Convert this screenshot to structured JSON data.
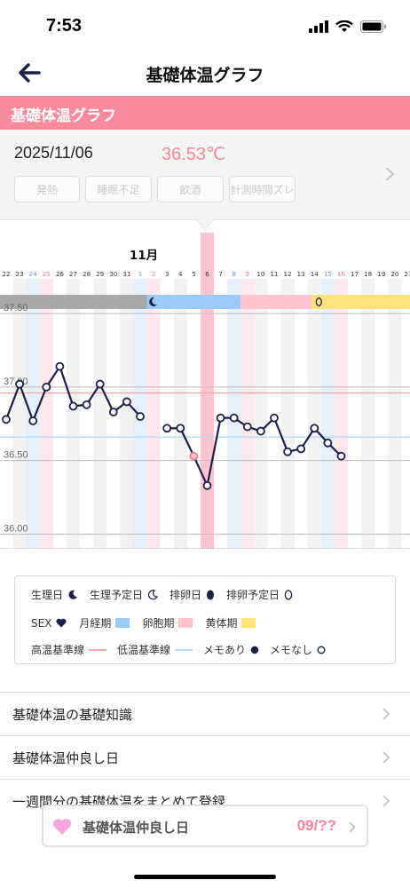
{
  "status_bar": {
    "time": "7:53",
    "icons": [
      "signal-icon",
      "wifi-icon",
      "battery-icon"
    ]
  },
  "nav": {
    "title": "基礎体温グラフ",
    "back_icon": "back-arrow-icon"
  },
  "section": {
    "title": "基礎体温グラフ"
  },
  "info": {
    "date": "2025/11/06",
    "temperature": "36.53℃",
    "tags": [
      "発熱",
      "睡眠不足",
      "飲酒",
      "計測時間ズレ"
    ]
  },
  "colors": {
    "pink": "#f98a9b",
    "navy": "#1b1f4a",
    "blue_band": "#9ccaf7",
    "pink_band": "#fdc3cf",
    "yellow_band": "#fde37d",
    "gray_band": "#a8a8a8",
    "high_line": "#f0a6a6",
    "low_line": "#b6dcf2"
  },
  "chart_data": {
    "type": "line",
    "month_label": "11月",
    "x": [
      "22",
      "23",
      "24",
      "25",
      "26",
      "27",
      "28",
      "29",
      "30",
      "31",
      "1",
      "2",
      "3",
      "4",
      "5",
      "6",
      "7",
      "8",
      "9",
      "10",
      "11",
      "12",
      "13",
      "14",
      "15",
      "16",
      "17",
      "18",
      "19",
      "20",
      "21"
    ],
    "y_ticks": [
      "37.50",
      "37.00",
      "36.50",
      "36.00"
    ],
    "ylim": [
      35.9,
      37.7
    ],
    "series": [
      {
        "name": "",
        "values": [
          36.78,
          37.02,
          36.77,
          37.0,
          37.14,
          36.87,
          36.88,
          37.02,
          36.83,
          36.9,
          36.8,
          null,
          36.72,
          36.72,
          36.53,
          36.33,
          36.79,
          36.79,
          36.73,
          36.7,
          36.79,
          36.56,
          36.58,
          36.72,
          36.62,
          36.53,
          null,
          null,
          null,
          null,
          null
        ]
      }
    ],
    "memo_points": [
      1
    ],
    "highlight_points": [
      14
    ],
    "high_baseline": 36.96,
    "low_baseline": 36.66,
    "phases": [
      {
        "type": "gray",
        "from": 0,
        "to": 10
      },
      {
        "type": "menstrual_icon",
        "at": 11
      },
      {
        "type": "blue",
        "from": 10,
        "to": 17
      },
      {
        "type": "pink",
        "from": 17,
        "to": 23
      },
      {
        "type": "ovulation_icon",
        "at": 23
      },
      {
        "type": "yellow",
        "from": 23,
        "to": 30
      }
    ],
    "columns_blue": [
      2,
      10,
      17,
      24
    ],
    "columns_pink": [
      3,
      11,
      18,
      25
    ],
    "today_index": 15
  },
  "legend": {
    "row1": [
      {
        "label": "生理日",
        "icon": "moon-filled-icon"
      },
      {
        "label": "生理予定日",
        "icon": "moon-outline-icon"
      },
      {
        "label": "排卵日",
        "icon": "egg-filled-icon"
      },
      {
        "label": "排卵予定日",
        "icon": "egg-outline-icon"
      }
    ],
    "row2": [
      {
        "label": "SEX",
        "icon": "heart-icon"
      },
      {
        "label": "月経期",
        "color": "#9ccaf7"
      },
      {
        "label": "卵胞期",
        "color": "#fdc3cf"
      },
      {
        "label": "黄体期",
        "color": "#fde37d"
      }
    ],
    "row3": [
      {
        "label": "高温基準線",
        "color": "#f0a6a6"
      },
      {
        "label": "低温基準線",
        "color": "#b6dcf2"
      },
      {
        "label": "メモあり",
        "icon": "dot-filled-icon"
      },
      {
        "label": "メモなし",
        "icon": "dot-outline-icon"
      }
    ]
  },
  "menu": [
    {
      "label": "基礎体温の基礎知識"
    },
    {
      "label": "基礎体温仲良し日"
    },
    {
      "label": "一週間分の基礎体温をまとめて登録"
    }
  ],
  "bottom_card": {
    "label": "基礎体温仲良し日",
    "count": "09/??"
  }
}
